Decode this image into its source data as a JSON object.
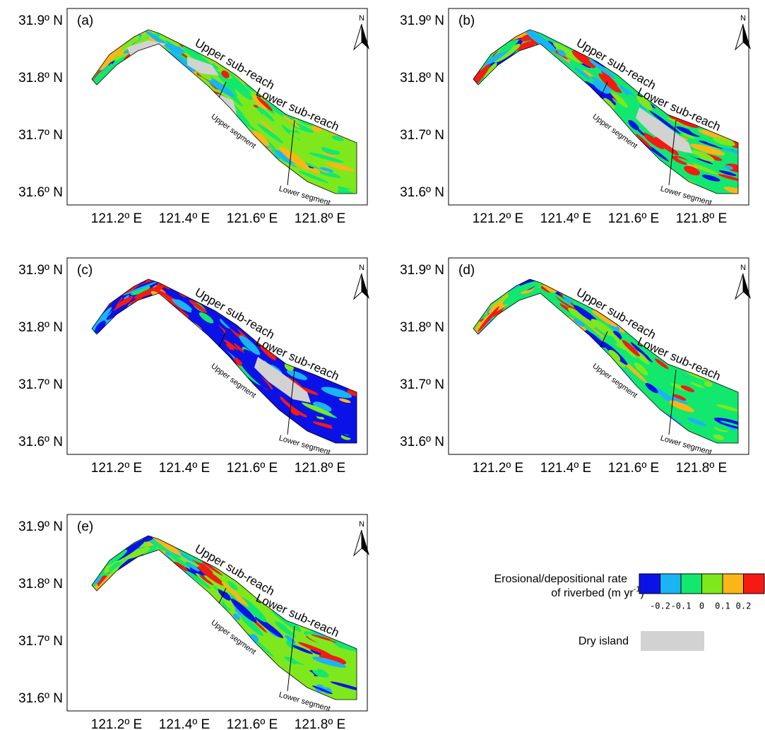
{
  "panels": [
    {
      "label": "(a)",
      "north": "N",
      "yticks": [
        "31.9º N",
        "31.8º N",
        "31.7º N",
        "31.6º N"
      ],
      "xticks": [
        "121.2º E",
        "121.4º E",
        "121.6º E",
        "121.8º E"
      ],
      "annotations": {
        "upper_sub_reach": "Upper sub-reach",
        "lower_sub_reach": "Lower sub-reach",
        "upper_segment": "Upper segment",
        "lower_segment": "Lower segment"
      }
    },
    {
      "label": "(b)",
      "north": "N",
      "yticks": [
        "31.9º N",
        "31.8º N",
        "31.7º N",
        "31.6º N"
      ],
      "xticks": [
        "121.2º E",
        "121.4º E",
        "121.6º E",
        "121.8º E"
      ],
      "annotations": {
        "upper_sub_reach": "Upper sub-reach",
        "lower_sub_reach": "Lower sub-reach",
        "upper_segment": "Upper segment",
        "lower_segment": "Lower segment"
      }
    },
    {
      "label": "(c)",
      "north": "N",
      "yticks": [
        "31.9º N",
        "31.8º N",
        "31.7º N",
        "31.6º N"
      ],
      "xticks": [
        "121.2º E",
        "121.4º E",
        "121.6º E",
        "121.8º E"
      ],
      "annotations": {
        "upper_sub_reach": "Upper sub-reach",
        "lower_sub_reach": "Lower sub-reach",
        "upper_segment": "Upper segment",
        "lower_segment": "Lower segment"
      }
    },
    {
      "label": "(d)",
      "north": "N",
      "yticks": [
        "31.9º N",
        "31.8º N",
        "31.7º N",
        "31.6º N"
      ],
      "xticks": [
        "121.2º E",
        "121.4º E",
        "121.6º E",
        "121.8º E"
      ],
      "annotations": {
        "upper_sub_reach": "Upper sub-reach",
        "lower_sub_reach": "Lower sub-reach",
        "upper_segment": "Upper segment",
        "lower_segment": "Lower segment"
      }
    },
    {
      "label": "(e)",
      "north": "N",
      "yticks": [
        "31.9º N",
        "31.8º N",
        "31.7º N",
        "31.6º N"
      ],
      "xticks": [
        "121.2º E",
        "121.4º E",
        "121.6º E",
        "121.8º E"
      ],
      "annotations": {
        "upper_sub_reach": "Upper sub-reach",
        "lower_sub_reach": "Lower sub-reach",
        "upper_segment": "Upper segment",
        "lower_segment": "Lower segment"
      }
    }
  ],
  "legend": {
    "title_line1": "Erosional/depositional rate",
    "title_line2": "of riverbed (m yr",
    "title_sup": "-1",
    "title_end": ")",
    "colors": [
      "#0b12e8",
      "#1ab4f5",
      "#12e86e",
      "#7fe81c",
      "#f9b616",
      "#f51a12"
    ],
    "ticks": [
      "-0.2",
      "-0.1",
      "0",
      "0.1",
      "0.2"
    ],
    "dry_island": "Dry island",
    "dry_island_color": "#d2d2d2"
  }
}
